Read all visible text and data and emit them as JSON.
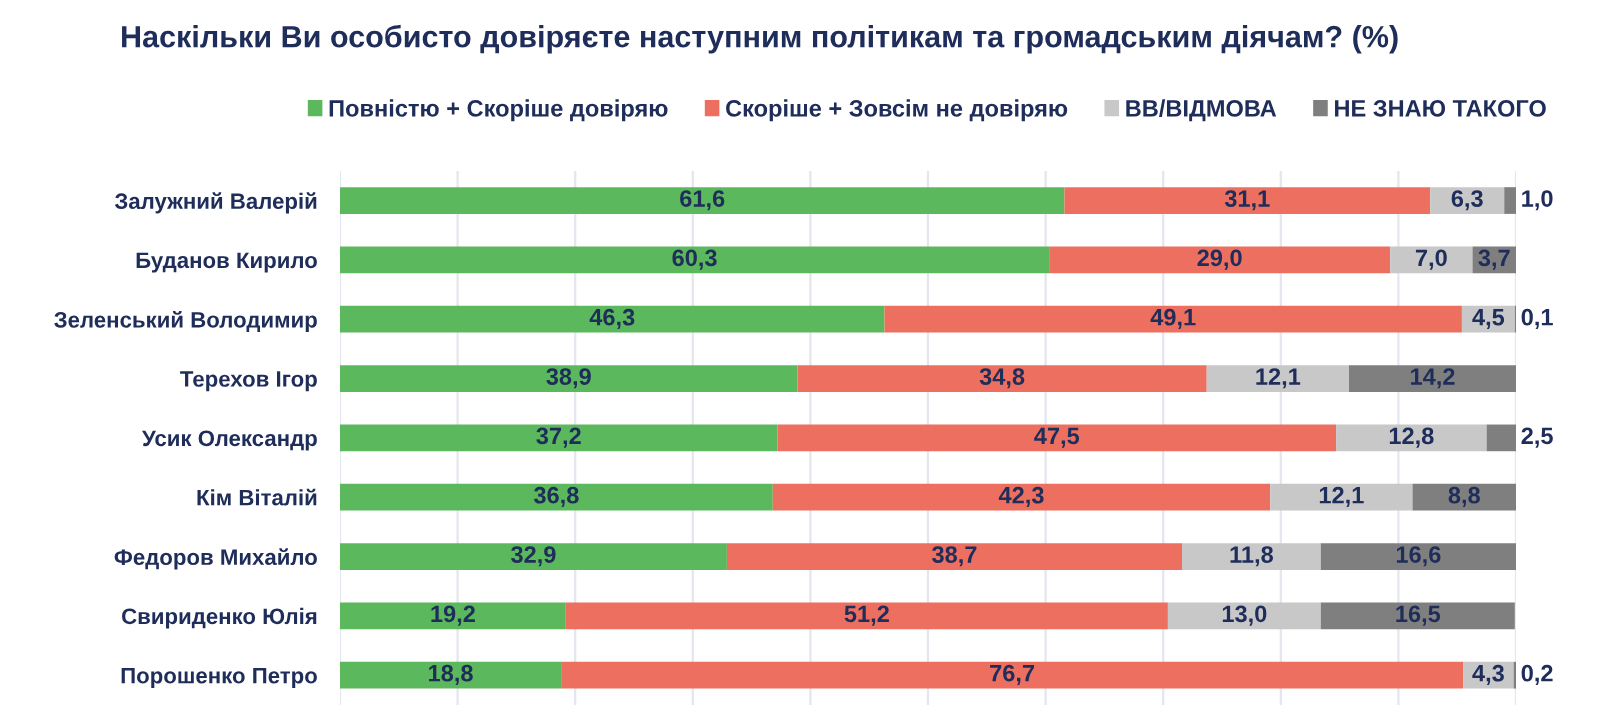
{
  "chart_data": {
    "type": "bar",
    "orientation": "horizontal",
    "stacked": true,
    "title": "Наскільки Ви особисто довіряєте наступним політикам та громадським діячам? (%)",
    "categories": [
      "Залужний Валерій",
      "Буданов Кирило",
      "Зеленський Володимир",
      "Терехов Ігор",
      "Усик Олександр",
      "Кім Віталій",
      "Федоров Михайло",
      "Свириденко Юлія",
      "Порошенко Петро"
    ],
    "series": [
      {
        "name": "Повністю + Скоріше довіряю",
        "color": "#5cb85c",
        "values": [
          61.6,
          60.3,
          46.3,
          38.9,
          37.2,
          36.8,
          32.9,
          19.2,
          18.8
        ],
        "value_labels": [
          "61,6",
          "60,3",
          "46,3",
          "38,9",
          "37,2",
          "36,8",
          "32,9",
          "19,2",
          "18,8"
        ]
      },
      {
        "name": "Скоріше + Зовсім не довіряю",
        "color": "#ec6f5f",
        "values": [
          31.1,
          29.0,
          49.1,
          34.8,
          47.5,
          42.3,
          38.7,
          51.2,
          76.7
        ],
        "value_labels": [
          "31,1",
          "29,0",
          "49,1",
          "34,8",
          "47,5",
          "42,3",
          "38,7",
          "51,2",
          "76,7"
        ]
      },
      {
        "name": "ВВ/ВІДМОВА",
        "color": "#c8c8c8",
        "values": [
          6.3,
          7.0,
          4.5,
          12.1,
          12.8,
          12.1,
          11.8,
          13.0,
          4.3
        ],
        "value_labels": [
          "6,3",
          "7,0",
          "4,5",
          "12,1",
          "12,8",
          "12,1",
          "11,8",
          "13,0",
          "4,3"
        ]
      },
      {
        "name": "НЕ ЗНАЮ ТАКОГО",
        "color": "#7f7f7f",
        "values": [
          1.0,
          3.7,
          0.1,
          14.2,
          2.5,
          8.8,
          16.6,
          16.5,
          0.2
        ],
        "value_labels": [
          "1,0",
          "3,7",
          "0,1",
          "14,2",
          "2,5",
          "8,8",
          "16,6",
          "16,5",
          "0,2"
        ]
      }
    ],
    "xlim": [
      0,
      100
    ],
    "xticks": [
      {
        "value": 0,
        "label": null
      },
      {
        "value": 10,
        "label": null
      },
      {
        "value": 20,
        "label": null
      },
      {
        "value": 30,
        "label": null
      },
      {
        "value": 40,
        "label": null
      },
      {
        "value": 50,
        "label": null
      },
      {
        "value": 60,
        "label": null
      },
      {
        "value": 70,
        "label": null
      },
      {
        "value": 80,
        "label": null
      },
      {
        "value": 90,
        "label": null
      },
      {
        "value": 100,
        "label": null
      }
    ],
    "grid": "x",
    "legend": "top",
    "tick_labels": "y"
  }
}
